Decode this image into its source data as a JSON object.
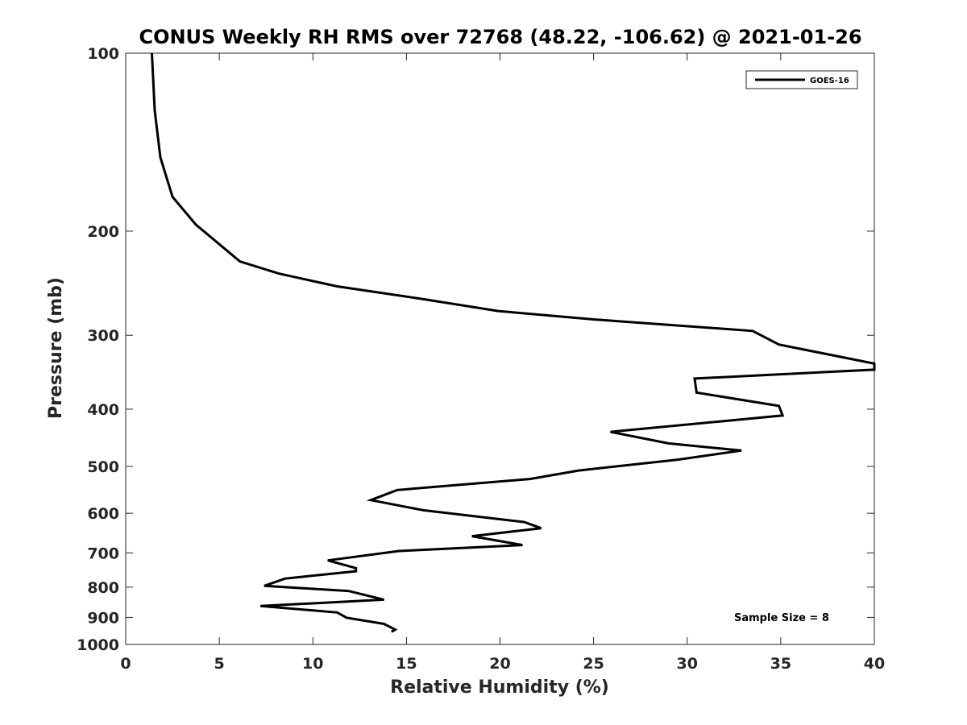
{
  "chart_data": {
    "type": "line",
    "title": "CONUS Weekly RH RMS over 72768 (48.22, -106.62) @ 2021-01-26",
    "xlabel": "Relative Humidity (%)",
    "ylabel": "Pressure (mb)",
    "xlim": [
      0,
      40
    ],
    "ylim": [
      100,
      1000
    ],
    "yscale": "log",
    "y_reversed": true,
    "xticks": [
      0,
      5,
      10,
      15,
      20,
      25,
      30,
      35,
      40
    ],
    "yticks": [
      100,
      200,
      300,
      400,
      500,
      600,
      700,
      800,
      900,
      1000
    ],
    "grid": false,
    "legend_position": "top-right",
    "annotation": "Sample Size = 8",
    "series": [
      {
        "name": "GOES-16",
        "color": "#000000",
        "points": [
          [
            1.4,
            100
          ],
          [
            1.55,
            125
          ],
          [
            1.85,
            150
          ],
          [
            2.5,
            175
          ],
          [
            3.75,
            195
          ],
          [
            6.1,
            225
          ],
          [
            8.2,
            236
          ],
          [
            11.3,
            248
          ],
          [
            15.7,
            260
          ],
          [
            19.9,
            273
          ],
          [
            25.0,
            282
          ],
          [
            33.5,
            295
          ],
          [
            34.9,
            311
          ],
          [
            40.0,
            335
          ],
          [
            40.0,
            343
          ],
          [
            30.4,
            355
          ],
          [
            30.5,
            375
          ],
          [
            34.9,
            395
          ],
          [
            35.1,
            410
          ],
          [
            25.9,
            437
          ],
          [
            29.0,
            457
          ],
          [
            32.9,
            470
          ],
          [
            29.5,
            487
          ],
          [
            24.2,
            508
          ],
          [
            21.6,
            525
          ],
          [
            14.5,
            548
          ],
          [
            13.1,
            570
          ],
          [
            15.9,
            593
          ],
          [
            21.3,
            621
          ],
          [
            22.2,
            636
          ],
          [
            18.5,
            656
          ],
          [
            21.2,
            679
          ],
          [
            14.6,
            695
          ],
          [
            10.8,
            721
          ],
          [
            12.3,
            743
          ],
          [
            12.3,
            752
          ],
          [
            8.5,
            774
          ],
          [
            7.4,
            796
          ],
          [
            11.9,
            812
          ],
          [
            13.8,
            840
          ],
          [
            7.2,
            861
          ],
          [
            11.3,
            883
          ],
          [
            11.8,
            901
          ],
          [
            13.8,
            923
          ],
          [
            14.4,
            944
          ],
          [
            14.2,
            952
          ]
        ]
      }
    ]
  }
}
